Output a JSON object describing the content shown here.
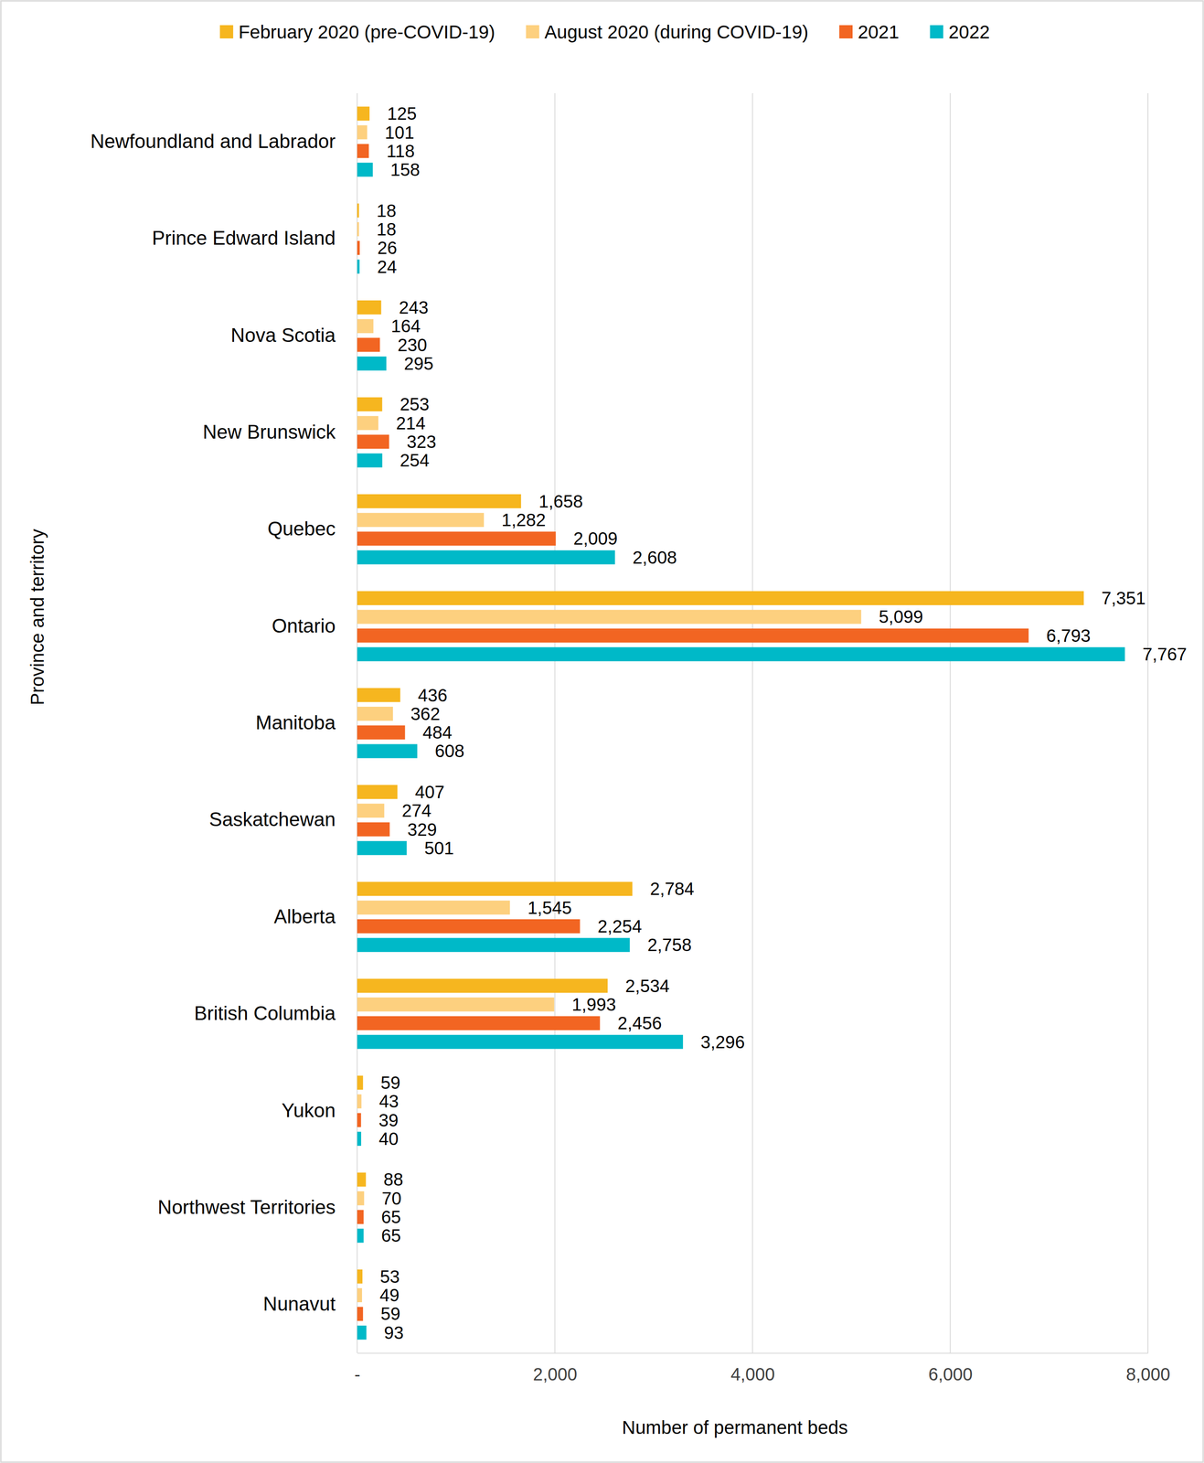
{
  "chart_data": {
    "type": "bar",
    "orientation": "horizontal",
    "x_label": "Number of permanent beds",
    "y_label": "Province and territory",
    "categories": [
      "Newfoundland and Labrador",
      "Prince Edward Island",
      "Nova Scotia",
      "New Brunswick",
      "Quebec",
      "Ontario",
      "Manitoba",
      "Saskatchewan",
      "Alberta",
      "British Columbia",
      "Yukon",
      "Northwest Territories",
      "Nunavut"
    ],
    "series": [
      {
        "name": "February 2020 (pre-COVID-19)",
        "color": "#f6b61f",
        "values": [
          125,
          18,
          243,
          253,
          1658,
          7351,
          436,
          407,
          2784,
          2534,
          59,
          88,
          53
        ],
        "value_labels": [
          "125",
          "18",
          "243",
          "253",
          "1,658",
          "7,351",
          "436",
          "407",
          "2,784",
          "2,534",
          "59",
          "88",
          "53"
        ]
      },
      {
        "name": "August 2020 (during COVID-19)",
        "color": "#fdd07f",
        "values": [
          101,
          18,
          164,
          214,
          1282,
          5099,
          362,
          274,
          1545,
          1993,
          43,
          70,
          49
        ],
        "value_labels": [
          "101",
          "18",
          "164",
          "214",
          "1,282",
          "5,099",
          "362",
          "274",
          "1,545",
          "1,993",
          "43",
          "70",
          "49"
        ]
      },
      {
        "name": "2021",
        "color": "#f26522",
        "values": [
          118,
          26,
          230,
          323,
          2009,
          6793,
          484,
          329,
          2254,
          2456,
          39,
          65,
          59
        ],
        "value_labels": [
          "118",
          "26",
          "230",
          "323",
          "2,009",
          "6,793",
          "484",
          "329",
          "2,254",
          "2,456",
          "39",
          "65",
          "59"
        ]
      },
      {
        "name": "2022",
        "color": "#00b9c8",
        "values": [
          158,
          24,
          295,
          254,
          2608,
          7767,
          608,
          501,
          2758,
          3296,
          40,
          65,
          93
        ],
        "value_labels": [
          "158",
          "24",
          "295",
          "254",
          "2,608",
          "7,767",
          "608",
          "501",
          "2,758",
          "3,296",
          "40",
          "65",
          "93"
        ]
      }
    ],
    "xlim": [
      0,
      8000
    ],
    "xticks": [
      {
        "value": 0,
        "label": "-"
      },
      {
        "value": 2000,
        "label": "2,000"
      },
      {
        "value": 4000,
        "label": "4,000"
      },
      {
        "value": 6000,
        "label": "6,000"
      },
      {
        "value": 8000,
        "label": "8,000"
      }
    ],
    "grid": true,
    "legend": "top",
    "data_labels": true
  }
}
